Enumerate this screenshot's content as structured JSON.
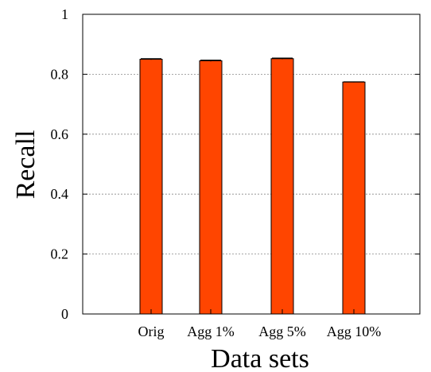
{
  "chart_data": {
    "type": "bar",
    "title": "",
    "xlabel": "Data sets",
    "ylabel": "Recall",
    "categories": [
      "Orig",
      "Agg 1%",
      "Agg 5%",
      "Agg 10%"
    ],
    "values": [
      0.85,
      0.845,
      0.852,
      0.774
    ],
    "error": [
      0.002,
      0.002,
      0.002,
      0.001
    ],
    "ylim": [
      0,
      1
    ],
    "yticks": [
      "0",
      "0.2",
      "0.4",
      "0.6",
      "0.8",
      "1"
    ],
    "grid": "horizontal dotted",
    "legend": "none",
    "colors": {
      "bar": "#ff4500",
      "bar_edge": "#000000",
      "grid": "#888888"
    }
  }
}
